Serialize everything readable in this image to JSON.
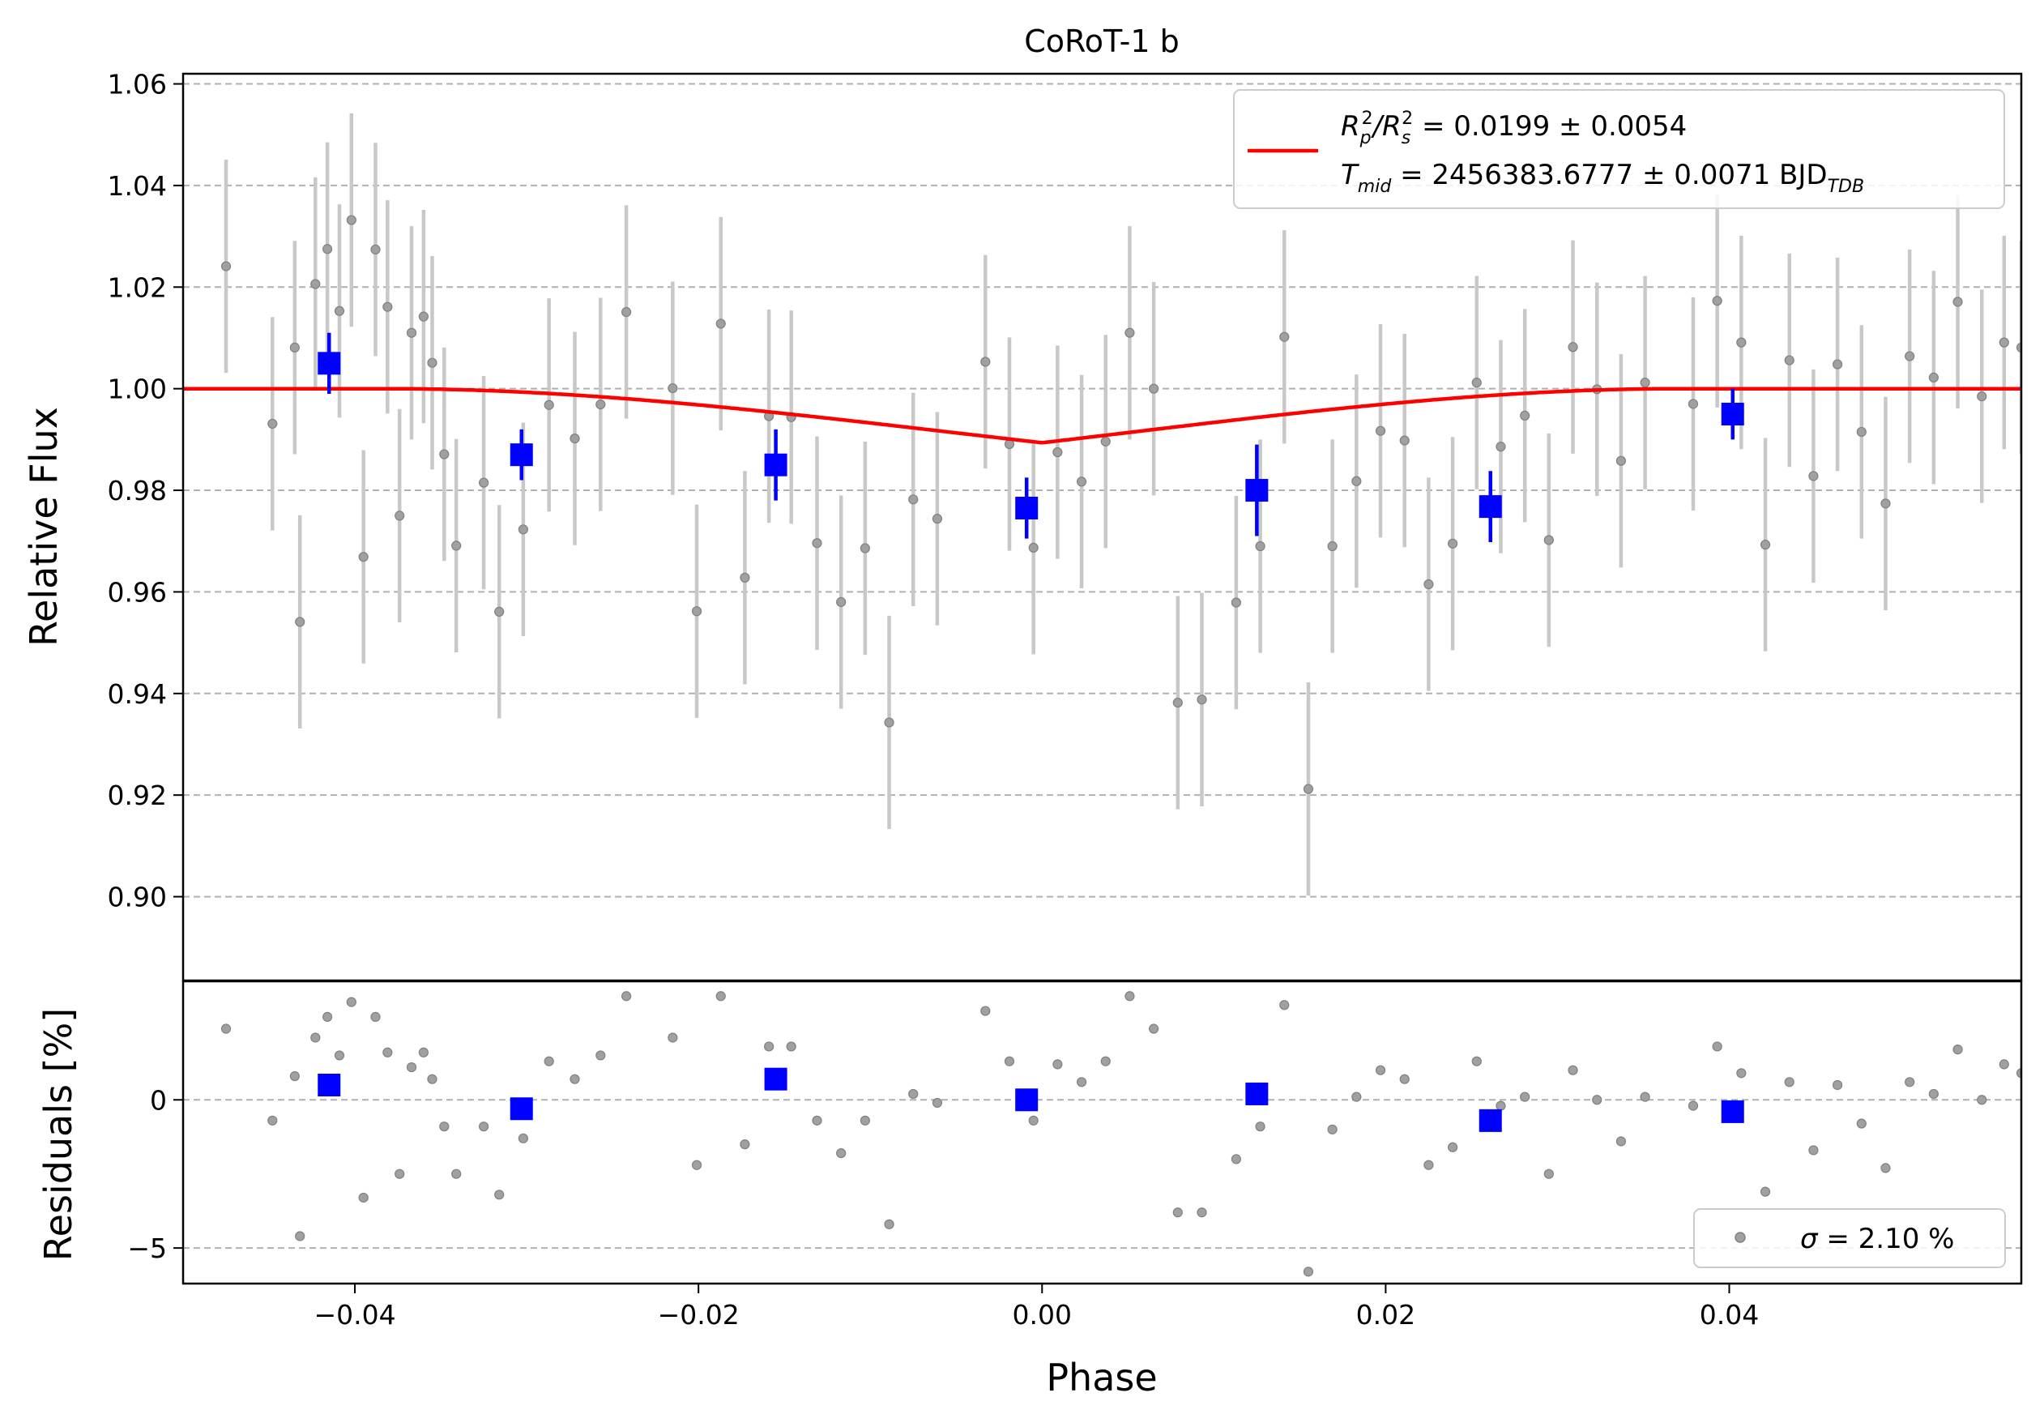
{
  "chart_data": [
    {
      "type": "scatter",
      "panel": "flux",
      "title": "CoRoT-1 b",
      "xlabel": "",
      "ylabel": "Relative Flux",
      "xlim": [
        -0.05,
        0.057
      ],
      "ylim": [
        0.8835,
        1.062
      ],
      "yticks": [
        0.9,
        0.92,
        0.94,
        0.96,
        0.98,
        1.0,
        1.02,
        1.04,
        1.06
      ],
      "ytick_labels": [
        "0.90",
        "0.92",
        "0.94",
        "0.96",
        "0.98",
        "1.00",
        "1.02",
        "1.04",
        "1.06"
      ],
      "grid": "y dashed",
      "legend_position": "top-right",
      "legend": {
        "line1_prefix": "R",
        "line1_sub_p": "p",
        "line1_sup": "2",
        "line1_slash": "/R",
        "line1_sub_s": "s",
        "line1_value": " = 0.0199 ± 0.0054",
        "line2_prefix": "T",
        "line2_sub": "mid",
        "line2_value": " = 2456383.6777 ± 0.0071 BJD",
        "line2_unit_sub": "TDB"
      },
      "raw_data": {
        "x": [
          -0.0475,
          -0.0448,
          -0.0435,
          -0.0432,
          -0.0423,
          -0.0416,
          -0.0409,
          -0.0402,
          -0.0395,
          -0.0388,
          -0.0381,
          -0.0374,
          -0.0367,
          -0.036,
          -0.0355,
          -0.0348,
          -0.0341,
          -0.0325,
          -0.0316,
          -0.0302,
          -0.0287,
          -0.0272,
          -0.0257,
          -0.0242,
          -0.0215,
          -0.0201,
          -0.0187,
          -0.0173,
          -0.0159,
          -0.0146,
          -0.0131,
          -0.0117,
          -0.0103,
          -0.0089,
          -0.0075,
          -0.0061,
          -0.0033,
          -0.0019,
          -0.0005,
          0.0009,
          0.0023,
          0.0037,
          0.0051,
          0.0065,
          0.0079,
          0.0093,
          0.0113,
          0.0127,
          0.0141,
          0.0155,
          0.0169,
          0.0183,
          0.0197,
          0.0211,
          0.0225,
          0.0239,
          0.0253,
          0.0267,
          0.0281,
          0.0295,
          0.0309,
          0.0323,
          0.0337,
          0.0351,
          0.0379,
          0.0393,
          0.0407,
          0.0421,
          0.0435,
          0.0449,
          0.0463,
          0.0477,
          0.0491,
          0.0505,
          0.0519,
          0.0533,
          0.0547,
          0.056,
          0.057
        ],
        "y": [
          1.0241,
          0.9931,
          1.0081,
          0.9541,
          1.0206,
          1.0275,
          1.0153,
          1.0332,
          0.9669,
          1.0274,
          1.0161,
          0.975,
          1.011,
          1.0142,
          1.0051,
          0.9871,
          0.9691,
          0.9815,
          0.9561,
          0.9723,
          0.9968,
          0.9902,
          0.9969,
          1.0151,
          1.0001,
          0.9562,
          1.0128,
          0.9628,
          0.9946,
          0.9944,
          0.9696,
          0.958,
          0.9686,
          0.9343,
          0.9782,
          0.9744,
          1.0053,
          0.9891,
          0.9687,
          0.9875,
          0.9817,
          0.9896,
          1.011,
          1.0,
          0.9382,
          0.9388,
          0.9579,
          0.969,
          1.0102,
          0.9212,
          0.969,
          0.9818,
          0.9917,
          0.9898,
          0.9615,
          0.9695,
          1.0012,
          0.9886,
          0.9947,
          0.9702,
          1.0082,
          0.9999,
          0.9858,
          1.0012,
          0.997,
          1.0173,
          1.0091,
          0.9693,
          1.0056,
          0.9828,
          1.0048,
          0.9915,
          0.9774,
          1.0064,
          1.0022,
          1.0171,
          0.9985,
          1.0091,
          1.0081
        ],
        "yerr": 0.021,
        "color": "#808080"
      },
      "binned_data": {
        "x": [
          -0.0415,
          -0.0303,
          -0.0155,
          -0.0009,
          0.0125,
          0.0261,
          0.0402
        ],
        "y": [
          1.005,
          0.987,
          0.985,
          0.9765,
          0.98,
          0.9768,
          0.995
        ],
        "yerr": [
          0.006,
          0.005,
          0.007,
          0.006,
          0.009,
          0.007,
          0.005
        ],
        "color": "#0000ff"
      },
      "model": {
        "color": "#ff0000",
        "baseline": 1.0,
        "depth_bottom": 0.976,
        "ingress_start": -0.038,
        "ingress_end": -0.027,
        "egress_start": 0.027,
        "egress_end": 0.037
      }
    },
    {
      "type": "scatter",
      "panel": "residuals",
      "xlabel": "Phase",
      "ylabel": "Residuals [%]",
      "xlim": [
        -0.05,
        0.057
      ],
      "ylim": [
        -6.2,
        4.0
      ],
      "xticks": [
        -0.04,
        -0.02,
        0.0,
        0.02,
        0.04
      ],
      "xtick_labels": [
        "−0.04",
        "−0.02",
        "0.00",
        "0.02",
        "0.04"
      ],
      "yticks": [
        -5,
        0
      ],
      "ytick_labels": [
        "−5",
        "0"
      ],
      "grid": "y dashed",
      "legend_position": "bottom-right",
      "legend": {
        "prefix": "σ",
        "value": " = 2.10 %"
      },
      "raw_residuals": [
        2.4,
        -0.7,
        0.8,
        -4.6,
        2.1,
        2.8,
        1.5,
        3.3,
        -3.3,
        2.8,
        1.6,
        -2.5,
        1.1,
        1.6,
        0.7,
        -0.9,
        -2.5,
        -0.9,
        -3.2,
        -1.3,
        1.3,
        0.7,
        1.5,
        3.5,
        2.1,
        -2.2,
        3.5,
        -1.5,
        1.8,
        1.8,
        -0.7,
        -1.8,
        -0.7,
        -4.2,
        0.2,
        -0.1,
        3.0,
        1.3,
        -0.7,
        1.2,
        0.6,
        1.3,
        3.5,
        2.4,
        -3.8,
        -3.8,
        -2.0,
        -0.9,
        3.2,
        -5.8,
        -1.0,
        0.1,
        1.0,
        0.7,
        -2.2,
        -1.6,
        1.3,
        -0.2,
        0.1,
        -2.5,
        1.0,
        0.0,
        -1.4,
        0.1,
        -0.2,
        1.8,
        0.9,
        -3.1,
        0.6,
        -1.7,
        0.5,
        -0.8,
        -2.3,
        0.6,
        0.2,
        1.7,
        0.0,
        1.2,
        0.9
      ],
      "binned_residuals": [
        0.5,
        -0.3,
        0.7,
        0.0,
        0.2,
        -0.7,
        -0.4
      ]
    }
  ]
}
